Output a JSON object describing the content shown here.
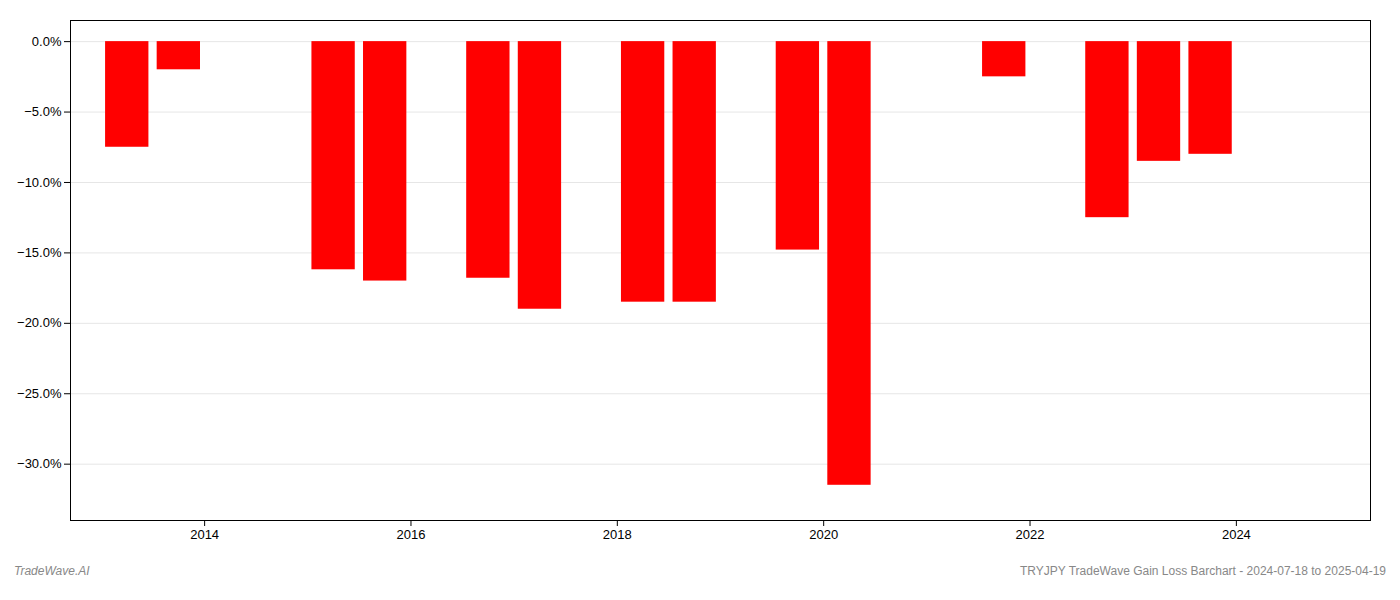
{
  "chart_data": {
    "type": "bar",
    "x": [
      2013.25,
      2013.75,
      2015.25,
      2015.75,
      2016.75,
      2017.25,
      2018.25,
      2018.75,
      2019.75,
      2020.25,
      2021.75,
      2022.75,
      2023.25,
      2023.75
    ],
    "values": [
      -7.5,
      -2.0,
      -16.2,
      -17.0,
      -16.8,
      -19.0,
      -18.5,
      -18.5,
      -14.8,
      -31.5,
      -2.5,
      -12.5,
      -8.5,
      -8.0
    ],
    "color": "#ff0000",
    "xlim": [
      2012.7,
      2025.3
    ],
    "xticks": [
      2014,
      2016,
      2018,
      2020,
      2022,
      2024
    ],
    "ylim": [
      -34,
      1.5
    ],
    "yticks": [
      {
        "value": 0.0,
        "label": "0.0%"
      },
      {
        "value": -5.0,
        "label": "−5.0%"
      },
      {
        "value": -10.0,
        "label": "−10.0%"
      },
      {
        "value": -15.0,
        "label": "−15.0%"
      },
      {
        "value": -20.0,
        "label": "−20.0%"
      },
      {
        "value": -25.0,
        "label": "−25.0%"
      },
      {
        "value": -30.0,
        "label": "−30.0%"
      }
    ],
    "grid": "y",
    "annotations": [
      "TradeWave.AI",
      "TRYJPY TradeWave Gain Loss Barchart - 2024-07-18 to 2025-04-19"
    ]
  }
}
